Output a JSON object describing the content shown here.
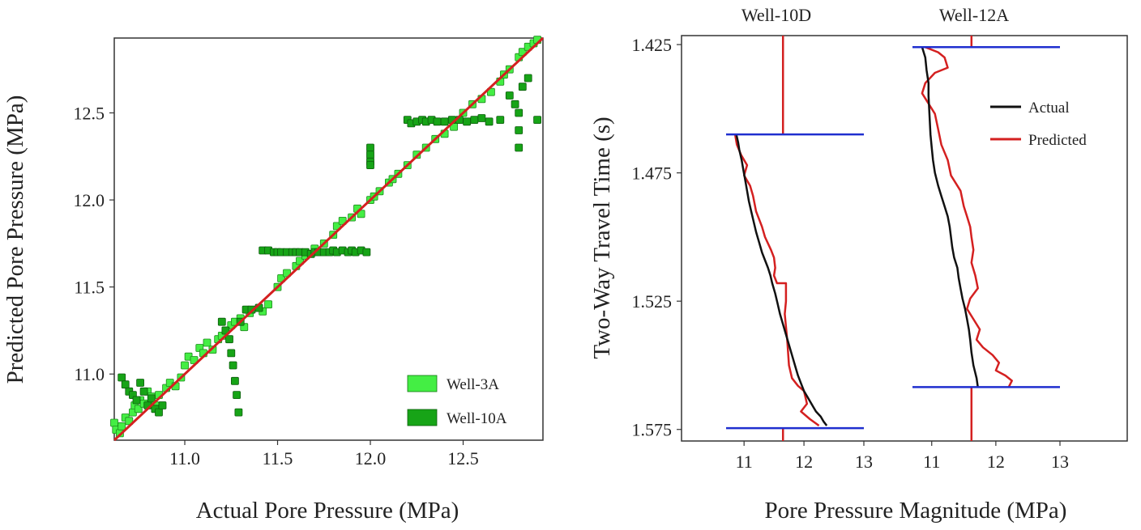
{
  "chart_data": [
    {
      "type": "scatter",
      "title": "",
      "xlabel": "Actual Pore Pressure (MPa)",
      "ylabel": "Predicted Pore Pressure (MPa)",
      "xlim": [
        10.62,
        12.93
      ],
      "ylim": [
        10.62,
        12.93
      ],
      "xticks": [
        11.0,
        11.5,
        12.0,
        12.5
      ],
      "yticks": [
        11.0,
        11.5,
        12.0,
        12.5
      ],
      "xtick_labels": [
        "11.0",
        "11.5",
        "12.0",
        "12.5"
      ],
      "ytick_labels": [
        "11.0",
        "11.5",
        "12.0",
        "12.5"
      ],
      "fit_line": {
        "x": [
          10.62,
          12.93
        ],
        "y": [
          10.62,
          12.93
        ],
        "color": "#d42020"
      },
      "legend": {
        "position": "bottom-right",
        "entries": [
          {
            "label": "Well-3A",
            "color": "#44ee44"
          },
          {
            "label": "Well-10A",
            "color": "#17a417"
          }
        ]
      },
      "series": [
        {
          "name": "Well-3A",
          "color": "#44ee44",
          "x": [
            10.62,
            10.63,
            10.65,
            10.66,
            10.68,
            10.7,
            10.72,
            10.73,
            10.75,
            10.76,
            10.78,
            10.8,
            10.82,
            10.84,
            10.86,
            10.9,
            10.92,
            10.95,
            10.98,
            11.0,
            11.02,
            11.05,
            11.08,
            11.1,
            11.12,
            11.15,
            11.18,
            11.2,
            11.22,
            11.25,
            11.27,
            11.3,
            11.32,
            11.35,
            11.4,
            11.42,
            11.45,
            11.5,
            11.52,
            11.55,
            11.6,
            11.62,
            11.65,
            11.7,
            11.75,
            11.8,
            11.82,
            11.85,
            11.9,
            11.93,
            11.95,
            12.0,
            12.02,
            12.05,
            12.1,
            12.12,
            12.15,
            12.2,
            12.25,
            12.3,
            12.35,
            12.4,
            12.45,
            12.5,
            12.55,
            12.6,
            12.65,
            12.7,
            12.72,
            12.75,
            12.8,
            12.82,
            12.85,
            12.88,
            12.9
          ],
          "y": [
            10.72,
            10.68,
            10.66,
            10.7,
            10.75,
            10.73,
            10.78,
            10.82,
            10.8,
            10.85,
            10.83,
            10.9,
            10.87,
            10.82,
            10.88,
            10.92,
            10.95,
            10.93,
            10.98,
            11.05,
            11.1,
            11.08,
            11.15,
            11.12,
            11.18,
            11.14,
            11.2,
            11.22,
            11.25,
            11.28,
            11.3,
            11.32,
            11.27,
            11.35,
            11.38,
            11.36,
            11.4,
            11.5,
            11.55,
            11.58,
            11.62,
            11.65,
            11.68,
            11.72,
            11.75,
            11.8,
            11.85,
            11.88,
            11.9,
            11.95,
            11.92,
            12.0,
            12.02,
            12.05,
            12.1,
            12.12,
            12.15,
            12.2,
            12.26,
            12.3,
            12.35,
            12.38,
            12.42,
            12.5,
            12.55,
            12.58,
            12.62,
            12.68,
            12.72,
            12.75,
            12.82,
            12.85,
            12.88,
            12.9,
            12.92
          ]
        },
        {
          "name": "Well-10A",
          "color": "#17a417",
          "x": [
            10.66,
            10.68,
            10.7,
            10.72,
            10.74,
            10.76,
            10.78,
            10.8,
            10.82,
            10.84,
            10.86,
            10.88,
            11.2,
            11.22,
            11.24,
            11.25,
            11.26,
            11.27,
            11.28,
            11.29,
            11.3,
            11.33,
            11.36,
            11.4,
            11.42,
            11.45,
            11.48,
            11.5,
            11.52,
            11.55,
            11.58,
            11.6,
            11.62,
            11.65,
            11.68,
            11.7,
            11.72,
            11.75,
            11.78,
            11.8,
            11.82,
            11.85,
            11.88,
            11.9,
            11.92,
            11.95,
            11.98,
            12.0,
            12.0,
            12.0,
            12.0,
            12.2,
            12.22,
            12.25,
            12.28,
            12.3,
            12.33,
            12.36,
            12.4,
            12.44,
            12.48,
            12.52,
            12.56,
            12.6,
            12.64,
            12.7,
            12.75,
            12.78,
            12.8,
            12.8,
            12.8,
            12.82,
            12.85,
            12.9
          ],
          "y": [
            10.98,
            10.94,
            10.9,
            10.88,
            10.85,
            10.95,
            10.9,
            10.82,
            10.86,
            10.8,
            10.78,
            10.82,
            11.3,
            11.25,
            11.2,
            11.12,
            11.05,
            10.96,
            10.88,
            10.78,
            11.3,
            11.37,
            11.37,
            11.38,
            11.71,
            11.71,
            11.7,
            11.7,
            11.7,
            11.7,
            11.7,
            11.7,
            11.7,
            11.7,
            11.69,
            11.7,
            11.7,
            11.7,
            11.7,
            11.71,
            11.7,
            11.71,
            11.7,
            11.71,
            11.7,
            11.71,
            11.7,
            12.3,
            12.26,
            12.22,
            12.2,
            12.46,
            12.44,
            12.45,
            12.46,
            12.45,
            12.46,
            12.45,
            12.45,
            12.46,
            12.46,
            12.45,
            12.46,
            12.47,
            12.45,
            12.46,
            12.6,
            12.55,
            12.3,
            12.4,
            12.5,
            12.65,
            12.7,
            12.46
          ]
        }
      ]
    },
    {
      "type": "line",
      "title": "",
      "xlabel": "Pore Pressure Magnitude (MPa)",
      "ylabel": "Two-Way Travel Time (s)",
      "ylim": [
        1.4215,
        1.5795
      ],
      "y_inverted": true,
      "yticks": [
        1.425,
        1.475,
        1.525,
        1.575
      ],
      "ytick_labels": [
        "1.425",
        "1.475",
        "1.525",
        "1.575"
      ],
      "xticks": [
        11,
        12,
        13
      ],
      "xtick_labels": [
        "11",
        "12",
        "13"
      ],
      "legend": {
        "position": "top-right",
        "entries": [
          {
            "label": "Actual",
            "color": "#111111"
          },
          {
            "label": "Predicted",
            "color": "#d42020"
          }
        ]
      },
      "panels": [
        {
          "title": "Well-10D",
          "xlim": [
            10.7,
            13
          ],
          "boundaries": {
            "top": 1.46,
            "bottom": 1.5745,
            "color": "#1f2fcf"
          },
          "series": [
            {
              "name": "Actual",
              "color": "#111111",
              "x": [
                10.87,
                10.9,
                10.92,
                10.96,
                10.99,
                11.02,
                11.05,
                11.08,
                11.12,
                11.16,
                11.2,
                11.25,
                11.3,
                11.35,
                11.4,
                11.44,
                11.47,
                11.52,
                11.56,
                11.6,
                11.65,
                11.7,
                11.75,
                11.8,
                11.85,
                11.9,
                11.95,
                12.0,
                12.05,
                12.1,
                12.15,
                12.2,
                12.28,
                12.33,
                12.38
              ],
              "y": [
                1.46,
                1.463,
                1.466,
                1.47,
                1.474,
                1.478,
                1.482,
                1.486,
                1.49,
                1.494,
                1.498,
                1.502,
                1.506,
                1.509,
                1.512,
                1.515,
                1.518,
                1.522,
                1.526,
                1.53,
                1.534,
                1.538,
                1.542,
                1.546,
                1.55,
                1.554,
                1.557,
                1.56,
                1.562,
                1.564,
                1.566,
                1.568,
                1.57,
                1.572,
                1.5735
              ]
            },
            {
              "name": "Predicted",
              "color": "#d42020",
              "x": [
                10.85,
                10.88,
                10.95,
                11.05,
                11.0,
                11.1,
                11.15,
                11.2,
                11.3,
                11.35,
                11.45,
                11.5,
                11.52,
                11.5,
                11.55,
                11.6,
                11.7,
                11.7,
                11.68,
                11.72,
                11.75,
                11.8,
                11.9,
                12.0,
                12.05,
                11.95,
                12.1,
                12.25
              ],
              "y": [
                1.46,
                1.464,
                1.468,
                1.472,
                1.476,
                1.48,
                1.484,
                1.49,
                1.496,
                1.5,
                1.505,
                1.508,
                1.512,
                1.515,
                1.518,
                1.518,
                1.518,
                1.525,
                1.53,
                1.54,
                1.55,
                1.555,
                1.558,
                1.56,
                1.565,
                1.568,
                1.571,
                1.5735
              ]
            }
          ],
          "well_line": {
            "x": 11.65,
            "color": "#d42020"
          }
        },
        {
          "title": "Well-12A",
          "xlim": [
            10.7,
            13
          ],
          "boundaries": {
            "top": 1.426,
            "bottom": 1.5585,
            "color": "#1f2fcf"
          },
          "series": [
            {
              "name": "Actual",
              "color": "#111111",
              "x": [
                10.85,
                10.9,
                10.92,
                10.95,
                10.95,
                10.96,
                10.97,
                10.98,
                11.0,
                11.02,
                11.05,
                11.1,
                11.15,
                11.2,
                11.25,
                11.28,
                11.3,
                11.32,
                11.35,
                11.4,
                11.42,
                11.45,
                11.48,
                11.52,
                11.55,
                11.58,
                11.6,
                11.62,
                11.65,
                11.7,
                11.72
              ],
              "y": [
                1.426,
                1.43,
                1.435,
                1.44,
                1.445,
                1.45,
                1.455,
                1.46,
                1.465,
                1.47,
                1.475,
                1.48,
                1.484,
                1.488,
                1.492,
                1.496,
                1.5,
                1.504,
                1.508,
                1.512,
                1.516,
                1.52,
                1.524,
                1.528,
                1.532,
                1.536,
                1.54,
                1.545,
                1.55,
                1.555,
                1.5585
              ]
            },
            {
              "name": "Predicted",
              "color": "#d42020",
              "x": [
                10.9,
                11.1,
                11.2,
                11.25,
                11.05,
                10.9,
                10.85,
                10.95,
                11.05,
                11.1,
                11.15,
                11.25,
                11.3,
                11.45,
                11.5,
                11.55,
                11.6,
                11.62,
                11.65,
                11.62,
                11.68,
                11.72,
                11.6,
                11.55,
                11.65,
                11.75,
                11.7,
                11.8,
                11.95,
                12.05,
                12.0,
                12.15,
                12.25,
                12.2
              ],
              "y": [
                1.426,
                1.428,
                1.43,
                1.434,
                1.436,
                1.44,
                1.444,
                1.448,
                1.452,
                1.458,
                1.464,
                1.47,
                1.476,
                1.482,
                1.488,
                1.492,
                1.496,
                1.5,
                1.505,
                1.51,
                1.515,
                1.52,
                1.524,
                1.528,
                1.532,
                1.536,
                1.54,
                1.543,
                1.546,
                1.549,
                1.552,
                1.554,
                1.556,
                1.5585
              ]
            }
          ],
          "well_line": {
            "x": 11.62,
            "color": "#d42020"
          }
        }
      ]
    }
  ]
}
